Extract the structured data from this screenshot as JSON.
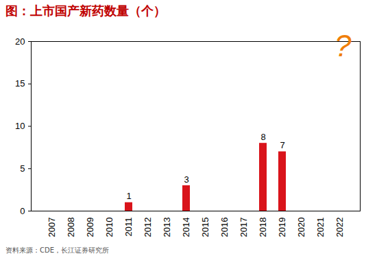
{
  "chart_data": {
    "type": "bar",
    "title": "图：上市国产新药数量（个）",
    "annotation": "?",
    "source": "资料来源：CDE，长江证券研究所",
    "categories": [
      "2007",
      "2008",
      "2009",
      "2010",
      "2011",
      "2012",
      "2013",
      "2014",
      "2015",
      "2016",
      "2017",
      "2018",
      "2019",
      "2020",
      "2021",
      "2022"
    ],
    "values": [
      null,
      null,
      null,
      null,
      1,
      null,
      null,
      3,
      null,
      null,
      null,
      8,
      7,
      null,
      null,
      null
    ],
    "color": "#d9141b",
    "ylim": [
      0,
      20
    ],
    "yticks": [
      0,
      5,
      10,
      15,
      20
    ],
    "grid": false,
    "data_labels": true
  }
}
